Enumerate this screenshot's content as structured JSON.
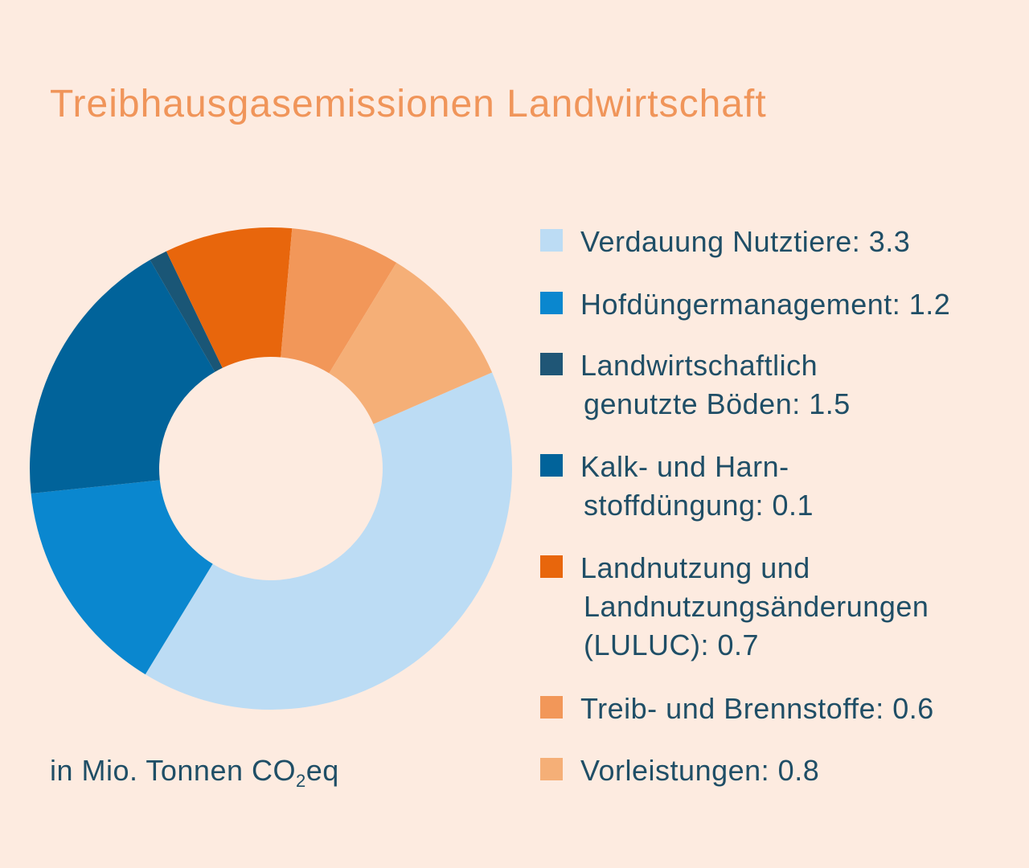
{
  "colors": {
    "background": "#fdebe0",
    "title": "#f0955a",
    "text": "#1f4e66"
  },
  "title": "Treibhausgasemissionen Landwirtschaft",
  "unit": {
    "prefix": "in Mio. Tonnen CO",
    "subscript": "2",
    "suffix": "eq"
  },
  "chart_data": {
    "type": "pie",
    "variant": "donut",
    "start_angle_deg": -23.5,
    "direction": "clockwise",
    "series": [
      {
        "label_lines": [
          "Verdauung Nutztiere: 3.3"
        ],
        "value": 3.3,
        "color": "#bcdcf4"
      },
      {
        "label_lines": [
          "Hofdüngermanagement: 1.2"
        ],
        "value": 1.2,
        "color": "#0a87cf"
      },
      {
        "label_lines": [
          "Landwirtschaftlich",
          "genutzte Böden: 1.5"
        ],
        "value": 1.5,
        "color": "#01639a"
      },
      {
        "label_lines": [
          "Kalk- und Harn-",
          "stoffdüngung: 0.1"
        ],
        "value": 0.1,
        "color": "#1a5676"
      },
      {
        "label_lines": [
          "Landnutzung und",
          "Landnutzungsänderungen",
          "(LULUC): 0.7"
        ],
        "value": 0.7,
        "color": "#e8660c"
      },
      {
        "label_lines": [
          "Treib- und Brennstoffe: 0.6"
        ],
        "value": 0.6,
        "color": "#f29759"
      },
      {
        "label_lines": [
          "Vorleistungen: 0.8"
        ],
        "value": 0.8,
        "color": "#f5af77"
      }
    ],
    "legend": {
      "position": "right",
      "swatch_colors": [
        "#bcdcf4",
        "#0a87cf",
        "#1f5676",
        "#01639a",
        "#e8660c",
        "#f29759",
        "#f5af77"
      ]
    }
  }
}
